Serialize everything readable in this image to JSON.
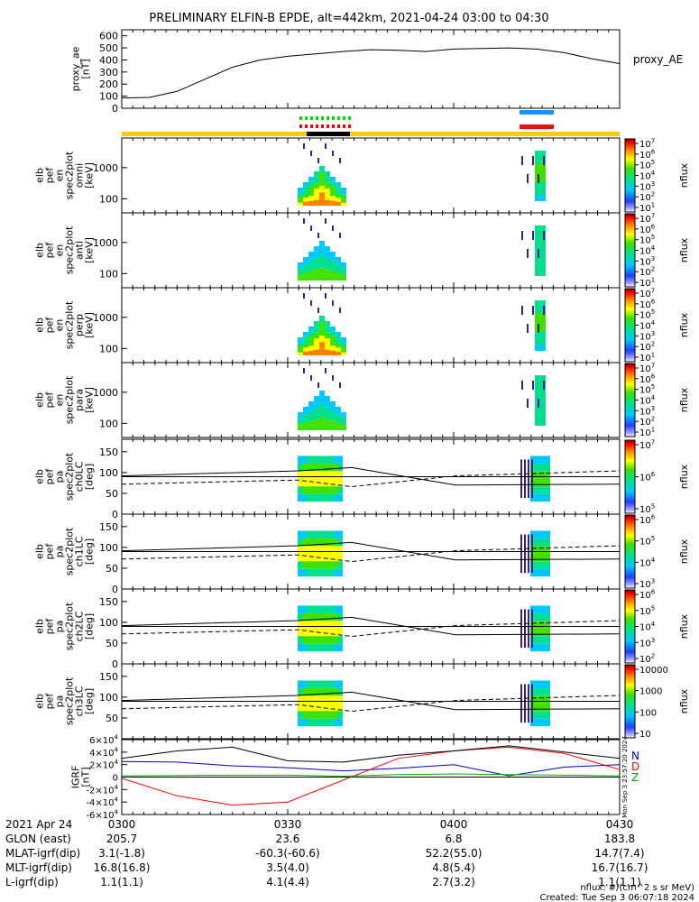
{
  "title": "PRELIMINARY ELFIN-B EPDE, alt=442km, 2021-04-24 03:00 to 04:30",
  "colors": {
    "ae_line": "#000000",
    "sw_green": "#00dd00",
    "sw_red": "#ff0000",
    "blue_bar": "#1e90ff",
    "red_bar": "#e81010",
    "yellow_bar": "#ffcc00",
    "N": "#0000cc",
    "D": "#ff0000",
    "Z": "#00aa00",
    "H": "#000000"
  },
  "chart_data": [
    {
      "type": "line",
      "name": "proxy_ae",
      "ylabel": "proxy_ae [nT]",
      "legend": "proxy_AE",
      "yticks": [
        "0",
        "100",
        "200",
        "300",
        "400",
        "500",
        "600"
      ],
      "ylim": [
        0,
        650
      ],
      "x_min": [
        0,
        5,
        10,
        15,
        20,
        25,
        30,
        35,
        40,
        45,
        50,
        55,
        60,
        65,
        70,
        75,
        80,
        85,
        90
      ],
      "values": [
        85,
        90,
        140,
        240,
        340,
        400,
        430,
        450,
        470,
        485,
        480,
        470,
        490,
        495,
        500,
        490,
        460,
        410,
        370
      ]
    },
    {
      "type": "heatmap",
      "name": "elb_pef_en_spec2plot_omni",
      "ylabel": [
        "elb",
        "pef",
        "en",
        "spec2plot",
        "omni",
        "[keV]"
      ],
      "yticks": [
        "100",
        "1000"
      ],
      "scale": "log",
      "cbar_ticks": [
        "10^1",
        "10^2",
        "10^3",
        "10^4",
        "10^5",
        "10^6",
        "10^7"
      ],
      "cbar_label": "nflux"
    },
    {
      "type": "heatmap",
      "name": "elb_pef_en_spec2plot_anti",
      "ylabel": [
        "elb",
        "pef",
        "en",
        "spec2plot",
        "anti",
        "[keV]"
      ],
      "yticks": [
        "100",
        "1000"
      ],
      "scale": "log",
      "cbar_ticks": [
        "10^1",
        "10^2",
        "10^3",
        "10^4",
        "10^5",
        "10^6",
        "10^7"
      ],
      "cbar_label": "nflux"
    },
    {
      "type": "heatmap",
      "name": "elb_pef_en_spec2plot_perp",
      "ylabel": [
        "elb",
        "pef",
        "en",
        "spec2plot",
        "perp",
        "[keV]"
      ],
      "yticks": [
        "100",
        "1000"
      ],
      "scale": "log",
      "cbar_ticks": [
        "10^1",
        "10^2",
        "10^3",
        "10^4",
        "10^5",
        "10^6",
        "10^7"
      ],
      "cbar_label": "nflux"
    },
    {
      "type": "heatmap",
      "name": "elb_pef_en_spec2plot_para",
      "ylabel": [
        "elb",
        "pef",
        "en",
        "spec2plot",
        "para",
        "[keV]"
      ],
      "yticks": [
        "100",
        "1000"
      ],
      "scale": "log",
      "cbar_ticks": [
        "10^1",
        "10^2",
        "10^3",
        "10^4",
        "10^5",
        "10^6",
        "10^7"
      ],
      "cbar_label": "nflux"
    },
    {
      "type": "heatmap",
      "name": "elb_pef_pa_spec2plot_ch0LC",
      "ylabel": [
        "elb",
        "pef",
        "pa",
        "spec2plot",
        "ch0LC",
        "[deg]"
      ],
      "yticks": [
        "0",
        "50",
        "100",
        "150"
      ],
      "ylim": [
        0,
        180
      ],
      "cbar_ticks": [
        "10^5",
        "10^6",
        "10^7"
      ],
      "cbar_label": "nflux"
    },
    {
      "type": "heatmap",
      "name": "elb_pef_pa_spec2plot_ch1LC",
      "ylabel": [
        "elb",
        "pef",
        "pa",
        "spec2plot",
        "ch1LC",
        "[deg]"
      ],
      "yticks": [
        "0",
        "50",
        "100",
        "150"
      ],
      "ylim": [
        0,
        180
      ],
      "cbar_ticks": [
        "10^3",
        "10^4",
        "10^5",
        "10^6"
      ],
      "cbar_label": "nflux"
    },
    {
      "type": "heatmap",
      "name": "elb_pef_pa_spec2plot_ch2LC",
      "ylabel": [
        "elb",
        "pef",
        "pa",
        "spec2plot",
        "ch2LC",
        "[deg]"
      ],
      "yticks": [
        "0",
        "50",
        "100",
        "150"
      ],
      "ylim": [
        0,
        180
      ],
      "cbar_ticks": [
        "10^2",
        "10^3",
        "10^4",
        "10^5",
        "10^6"
      ],
      "cbar_label": "nflux"
    },
    {
      "type": "heatmap",
      "name": "elb_pef_pa_spec2plot_ch3LC",
      "ylabel": [
        "elb",
        "pef",
        "pa",
        "spec2plot",
        "ch3LC",
        "[deg]"
      ],
      "yticks": [
        "50",
        "100",
        "150"
      ],
      "ylim": [
        0,
        180
      ],
      "cbar_ticks": [
        "10",
        "100",
        "1000",
        "10000"
      ],
      "cbar_label": "nflux"
    },
    {
      "type": "line",
      "name": "IGRF",
      "ylabel": [
        "IGRF",
        "[nT]"
      ],
      "yticks": [
        "-6×10^4",
        "-4×10^4",
        "-2×10^4",
        "0",
        "2×10^4",
        "4×10^4",
        "6×10^4"
      ],
      "ylim": [
        -60000,
        60000
      ],
      "legend": [
        "N",
        "D",
        "Z"
      ],
      "side_text": "Mon Sep  3 23:57:20 2024",
      "x_min": [
        0,
        10,
        20,
        30,
        40,
        50,
        60,
        70,
        80,
        90
      ],
      "series": [
        {
          "name": "N",
          "values": [
            25000,
            24000,
            18000,
            15000,
            10000,
            14000,
            20000,
            2000,
            16000,
            20000
          ]
        },
        {
          "name": "D",
          "values": [
            -2000,
            -30000,
            -45000,
            -40000,
            -5000,
            30000,
            42000,
            48000,
            38000,
            12000
          ]
        },
        {
          "name": "Z",
          "values": [
            2000,
            2500,
            3000,
            3000,
            1500,
            4000,
            5000,
            4000,
            3000,
            2000
          ]
        },
        {
          "name": "H",
          "values": [
            30000,
            42000,
            48000,
            26000,
            24000,
            35000,
            42000,
            50000,
            40000,
            30000
          ]
        }
      ]
    }
  ],
  "x_axis": {
    "date_label": "2021 Apr 24",
    "ticks": [
      "0300",
      "0330",
      "0400",
      "0430"
    ]
  },
  "ephemeris": [
    {
      "label": "GLON (east)",
      "values": [
        "205.7",
        "23.6",
        "6.8",
        "183.8"
      ]
    },
    {
      "label": "MLAT-igrf(dip)",
      "values": [
        "3.1(-1.8)",
        "-60.3(-60.6)",
        "52.2(55.0)",
        "14.7(7.4)"
      ]
    },
    {
      "label": "MLT-igrf(dip)",
      "values": [
        "16.8(16.8)",
        "3.5(4.0)",
        "4.8(5.4)",
        "16.7(16.7)"
      ]
    },
    {
      "label": "L-igrf(dip)",
      "values": [
        "1.1(1.1)",
        "4.1(4.4)",
        "2.7(3.2)",
        "1.1(1.1)"
      ]
    }
  ],
  "footer": {
    "units": "nflux: #/(cm^2 s sr MeV)",
    "created": "Created: Tue Sep  3 06:07:18 2024"
  }
}
